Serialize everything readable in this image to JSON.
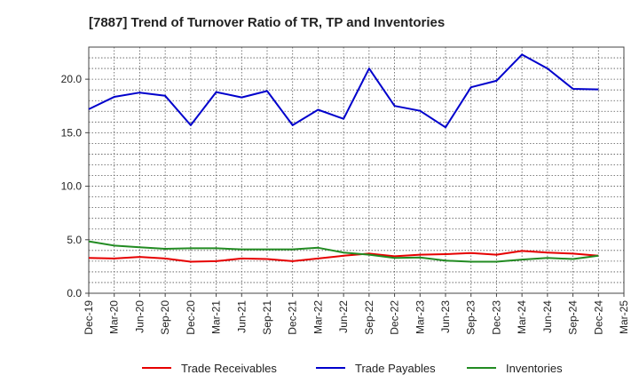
{
  "chart_data": {
    "type": "line",
    "title": "[7887]  Trend of Turnover Ratio of TR, TP and Inventories",
    "xlabel": "",
    "ylabel": "",
    "x": [
      "Dec-19",
      "Mar-20",
      "Jun-20",
      "Sep-20",
      "Dec-20",
      "Mar-21",
      "Jun-21",
      "Sep-21",
      "Dec-21",
      "Mar-22",
      "Jun-22",
      "Sep-22",
      "Dec-22",
      "Mar-23",
      "Jun-23",
      "Sep-23",
      "Dec-23",
      "Mar-24",
      "Jun-24",
      "Sep-24",
      "Dec-24"
    ],
    "x_tick_labels": [
      "Dec-19",
      "Mar-20",
      "Jun-20",
      "Sep-20",
      "Dec-20",
      "Mar-21",
      "Jun-21",
      "Sep-21",
      "Dec-21",
      "Mar-22",
      "Jun-22",
      "Sep-22",
      "Dec-22",
      "Mar-23",
      "Jun-23",
      "Sep-23",
      "Dec-23",
      "Mar-24",
      "Jun-24",
      "Sep-24",
      "Dec-24",
      "Mar-25"
    ],
    "ylim": [
      0,
      23
    ],
    "y_ticks": [
      "0.0",
      "5.0",
      "10.0",
      "15.0",
      "20.0"
    ],
    "grid": true,
    "legend_position": "bottom",
    "series": [
      {
        "name": "Trade Receivables",
        "color": "#e60000",
        "values": [
          3.3,
          3.25,
          3.4,
          3.25,
          2.95,
          3.0,
          3.25,
          3.2,
          3.0,
          3.25,
          3.5,
          3.7,
          3.45,
          3.6,
          3.65,
          3.75,
          3.6,
          3.95,
          3.8,
          3.7,
          3.5
        ]
      },
      {
        "name": "Trade Payables",
        "color": "#0000cc",
        "values": [
          17.2,
          18.35,
          18.75,
          18.45,
          15.7,
          18.8,
          18.3,
          18.9,
          15.7,
          17.15,
          16.3,
          21.0,
          17.5,
          17.05,
          15.5,
          19.25,
          19.85,
          22.3,
          21.0,
          19.1,
          19.05
        ]
      },
      {
        "name": "Inventories",
        "color": "#228b22",
        "values": [
          4.85,
          4.45,
          4.3,
          4.15,
          4.2,
          4.2,
          4.1,
          4.1,
          4.1,
          4.25,
          3.8,
          3.6,
          3.3,
          3.35,
          3.05,
          2.95,
          2.95,
          3.15,
          3.3,
          3.2,
          3.5
        ]
      }
    ]
  }
}
